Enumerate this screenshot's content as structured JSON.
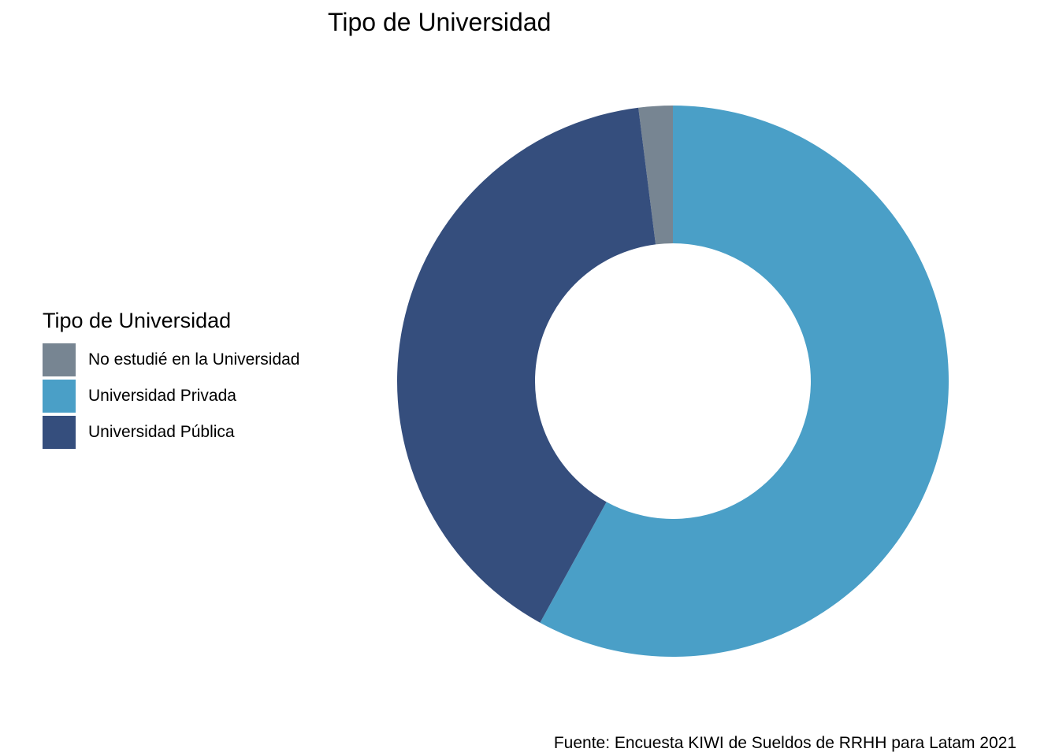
{
  "chart_data": {
    "type": "pie",
    "variant": "donut",
    "title": "Tipo de Universidad",
    "legend": {
      "title": "Tipo de Universidad",
      "placement": "left"
    },
    "categories": [
      "No estudié en la Universidad",
      "Universidad Privada",
      "Universidad Pública"
    ],
    "values": [
      2.0,
      58.0,
      40.0
    ],
    "colors": [
      "#778592",
      "#4A9FC7",
      "#354E7D"
    ],
    "caption": "Fuente: Encuesta KIWI de Sueldos de RRHH para Latam 2021"
  }
}
